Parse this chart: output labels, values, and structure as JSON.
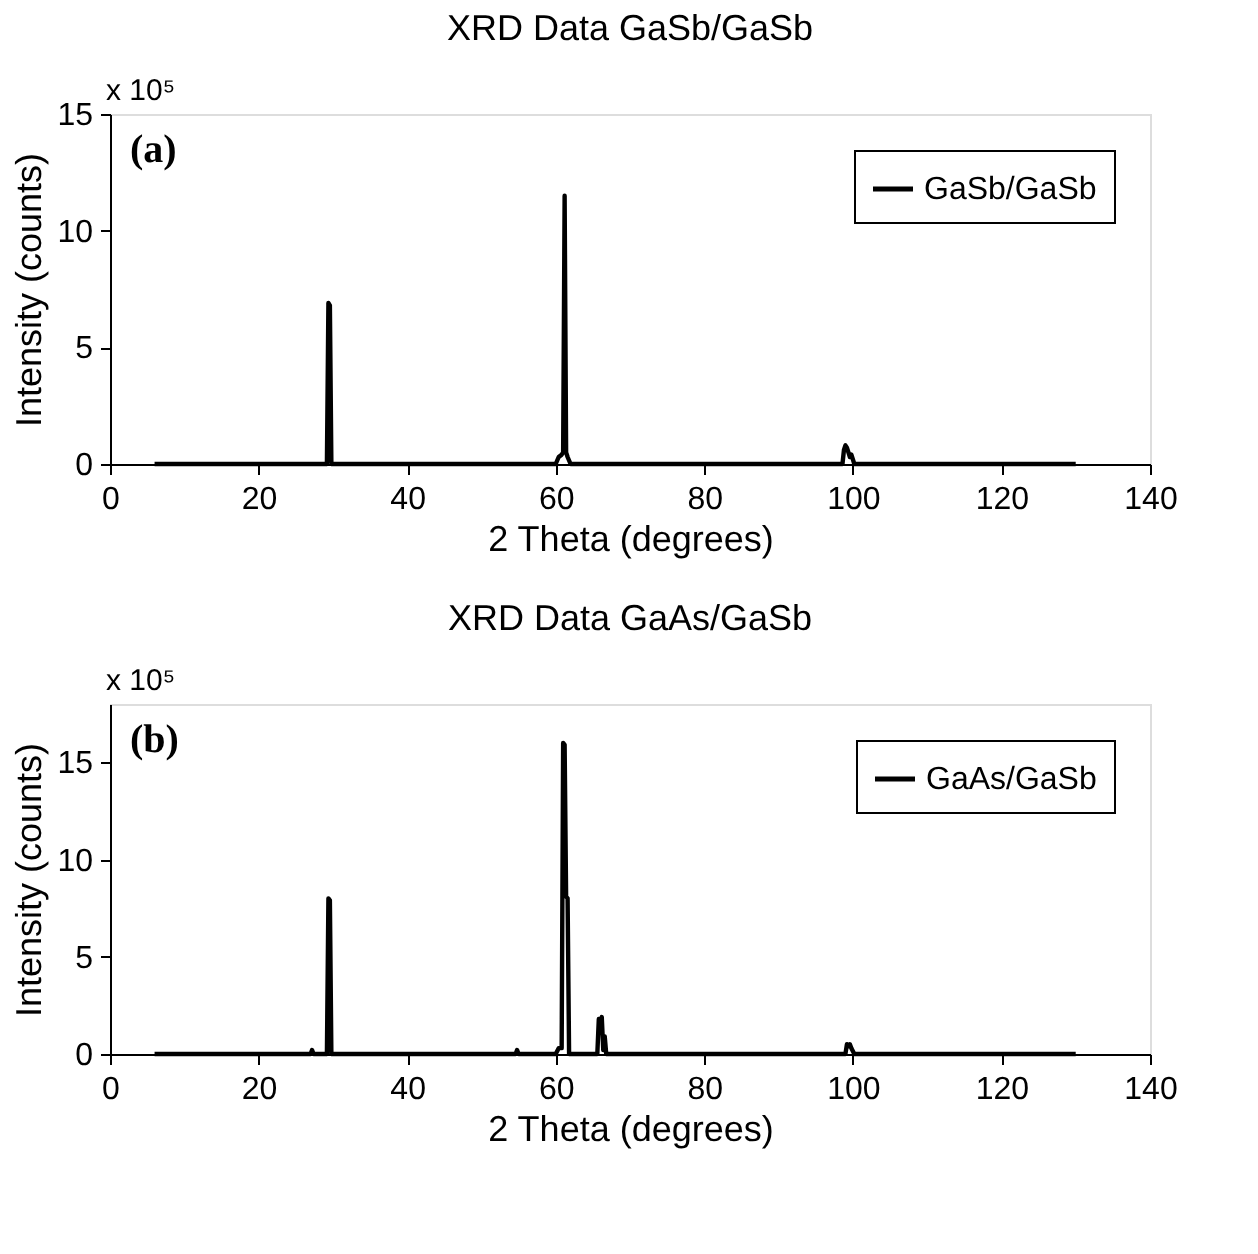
{
  "chart_data": [
    {
      "type": "line",
      "title": "XRD Data GaSb/GaSb",
      "xlabel": "2 Theta (degrees)",
      "ylabel": "Intensity (counts)",
      "annotations": [
        "x 10⁵",
        "(a)"
      ],
      "legend": "top right",
      "grid": false,
      "xlim": [
        0,
        140
      ],
      "xticks": [
        0,
        20,
        40,
        60,
        80,
        100,
        120,
        140
      ],
      "ylim": [
        0,
        15
      ],
      "yticks": [
        0,
        5,
        10,
        15
      ],
      "series": [
        {
          "name": "GaSb/GaSb",
          "color": "#000000",
          "x": [
            6,
            29.2,
            29.4,
            29.6,
            29.8,
            30.0,
            60.0,
            60.4,
            60.8,
            61.0,
            61.2,
            61.4,
            61.6,
            62.0,
            98.6,
            98.8,
            99.0,
            99.2,
            99.6,
            99.8,
            100.2,
            130
          ],
          "values": [
            0,
            0,
            6.9,
            6.8,
            0,
            0,
            0,
            0.3,
            0.4,
            0.5,
            11.5,
            0.5,
            0.3,
            0,
            0,
            0.6,
            0.8,
            0.7,
            0.3,
            0.4,
            0,
            0
          ]
        }
      ]
    },
    {
      "type": "line",
      "title": "XRD Data GaAs/GaSb",
      "xlabel": "2 Theta (degrees)",
      "ylabel": "Intensity (counts)",
      "annotations": [
        "x 10⁵",
        "(b)"
      ],
      "legend": "top right",
      "grid": false,
      "xlim": [
        0,
        140
      ],
      "xticks": [
        0,
        20,
        40,
        60,
        80,
        100,
        120,
        140
      ],
      "ylim": [
        0,
        18
      ],
      "yticks": [
        0,
        5,
        10,
        15
      ],
      "series": [
        {
          "name": "GaAs/GaSb",
          "color": "#000000",
          "x": [
            6,
            27,
            27.2,
            27.4,
            29.2,
            29.4,
            29.6,
            29.8,
            30.0,
            54.6,
            54.8,
            55,
            60.0,
            60.4,
            60.8,
            61.0,
            61.2,
            61.4,
            61.6,
            61.8,
            62.0,
            65.6,
            65.8,
            66.0,
            66.2,
            66.4,
            66.6,
            66.8,
            67.0,
            99.0,
            99.2,
            99.4,
            99.6,
            99.8,
            100.2,
            130
          ],
          "values": [
            0,
            0,
            0.2,
            0,
            0,
            8.0,
            7.9,
            0,
            0,
            0,
            0.2,
            0,
            0,
            0.3,
            0.3,
            16.0,
            15.9,
            8.1,
            8.0,
            0,
            0,
            0,
            1.8,
            1.7,
            1.9,
            0.2,
            0.9,
            0,
            0,
            0,
            0.5,
            0.4,
            0.5,
            0.3,
            0,
            0
          ]
        }
      ]
    }
  ]
}
